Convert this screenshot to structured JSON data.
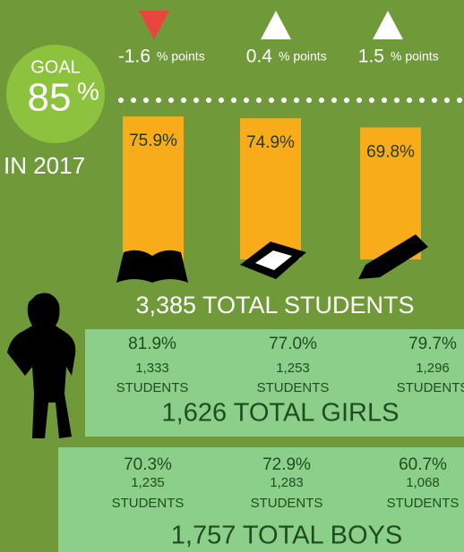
{
  "goal": {
    "caption": "GOAL",
    "value": 85,
    "unit": "%",
    "year": "IN 2017"
  },
  "changes": [
    {
      "direction": "down",
      "value": -1.6,
      "unit": "% points"
    },
    {
      "direction": "up",
      "value": 0.4,
      "unit": "% points"
    },
    {
      "direction": "up",
      "value": 1.5,
      "unit": "% points"
    }
  ],
  "bars": [
    {
      "value": 75.9,
      "label": "75.9%"
    },
    {
      "value": 74.9,
      "label": "74.9%"
    },
    {
      "value": 69.8,
      "label": "69.8%"
    }
  ],
  "total_students": "3,385 TOTAL STUDENTS",
  "girls": {
    "columns": [
      {
        "percent": "81.9%",
        "count": "1,333",
        "unit": "STUDENTS"
      },
      {
        "percent": "77.0%",
        "count": "1,253",
        "unit": "STUDENTS"
      },
      {
        "percent": "79.7%",
        "count": "1,296",
        "unit": "STUDENTS"
      }
    ],
    "total": "1,626 TOTAL GIRLS"
  },
  "boys": {
    "columns": [
      {
        "percent": "70.3%",
        "count": "1,235",
        "unit": "STUDENTS"
      },
      {
        "percent": "72.9%",
        "count": "1,283",
        "unit": "STUDENTS"
      },
      {
        "percent": "60.7%",
        "count": "1,068",
        "unit": "STUDENTS"
      }
    ],
    "total": "1,757 TOTAL BOYS"
  }
}
